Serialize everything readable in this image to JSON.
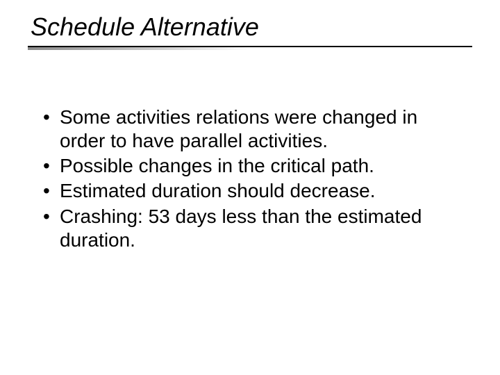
{
  "slide": {
    "title": "Schedule Alternative",
    "bullets": [
      "Some activities relations were changed in order to have parallel activities.",
      "Possible changes in the critical path.",
      "Estimated duration should decrease.",
      "Crashing: 53 days less than the estimated duration."
    ],
    "title_fontsize": 36,
    "body_fontsize": 28,
    "text_color": "#000000",
    "background_color": "#ffffff",
    "rule_color": "#000000",
    "rule_gradient_start": "#8a8a8a",
    "rule_gradient_end": "#ffffff"
  }
}
